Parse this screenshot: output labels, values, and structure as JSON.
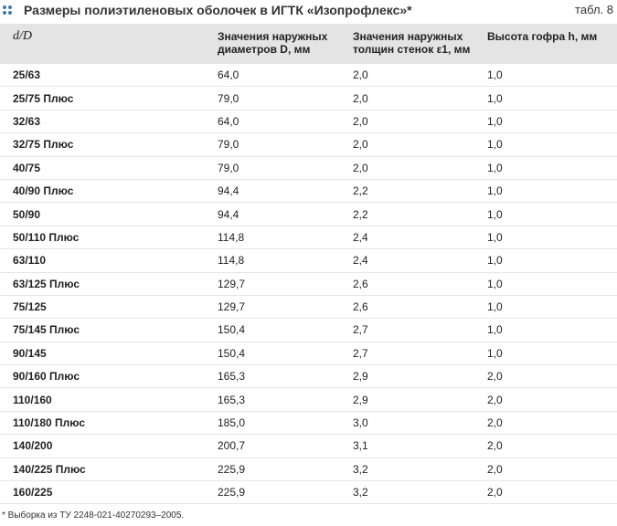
{
  "header": {
    "title": "Размеры полиэтиленовых оболочек в ИГТК «Изопрофлекс»*",
    "table_label": "табл. 8"
  },
  "table": {
    "columns": [
      "d/D",
      "Значения наружных диаметров D, мм",
      "Значения наружных толщин стенок ε1, мм",
      "Высота гофра h, мм"
    ],
    "rows": [
      [
        "25/63",
        "64,0",
        "2,0",
        "1,0"
      ],
      [
        "25/75 Плюс",
        "79,0",
        "2,0",
        "1,0"
      ],
      [
        "32/63",
        "64,0",
        "2,0",
        "1,0"
      ],
      [
        "32/75 Плюс",
        "79,0",
        "2,0",
        "1,0"
      ],
      [
        "40/75",
        "79,0",
        "2,0",
        "1,0"
      ],
      [
        "40/90 Плюс",
        "94,4",
        "2,2",
        "1,0"
      ],
      [
        "50/90",
        "94,4",
        "2,2",
        "1,0"
      ],
      [
        "50/110 Плюс",
        "114,8",
        "2,4",
        "1,0"
      ],
      [
        "63/110",
        "114,8",
        "2,4",
        "1,0"
      ],
      [
        "63/125 Плюс",
        "129,7",
        "2,6",
        "1,0"
      ],
      [
        "75/125",
        "129,7",
        "2,6",
        "1,0"
      ],
      [
        "75/145 Плюс",
        "150,4",
        "2,7",
        "1,0"
      ],
      [
        "90/145",
        "150,4",
        "2,7",
        "1,0"
      ],
      [
        "90/160 Плюс",
        "165,3",
        "2,9",
        "2,0"
      ],
      [
        "110/160",
        "165,3",
        "2,9",
        "2,0"
      ],
      [
        "110/180 Плюс",
        "185,0",
        "3,0",
        "2,0"
      ],
      [
        "140/200",
        "200,7",
        "3,1",
        "2,0"
      ],
      [
        "140/225 Плюс",
        "225,9",
        "3,2",
        "2,0"
      ],
      [
        "160/225",
        "225,9",
        "3,2",
        "2,0"
      ]
    ]
  },
  "footnote": "* Выборка из ТУ 2248-021-40270293–2005."
}
